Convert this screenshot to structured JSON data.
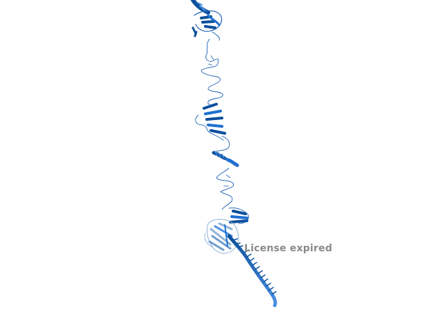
{
  "viewer": {
    "watermark_text": "License expired",
    "background": "#ffffff",
    "colors": {
      "ribbon_dark": "#0b4f9c",
      "ribbon_mid": "#1e6fd1",
      "ribbon_light": "#4a90e2",
      "coil": "#1a5fb4",
      "domain_pale": "#8fb0d8",
      "watermark": "#8a8a8a"
    }
  }
}
